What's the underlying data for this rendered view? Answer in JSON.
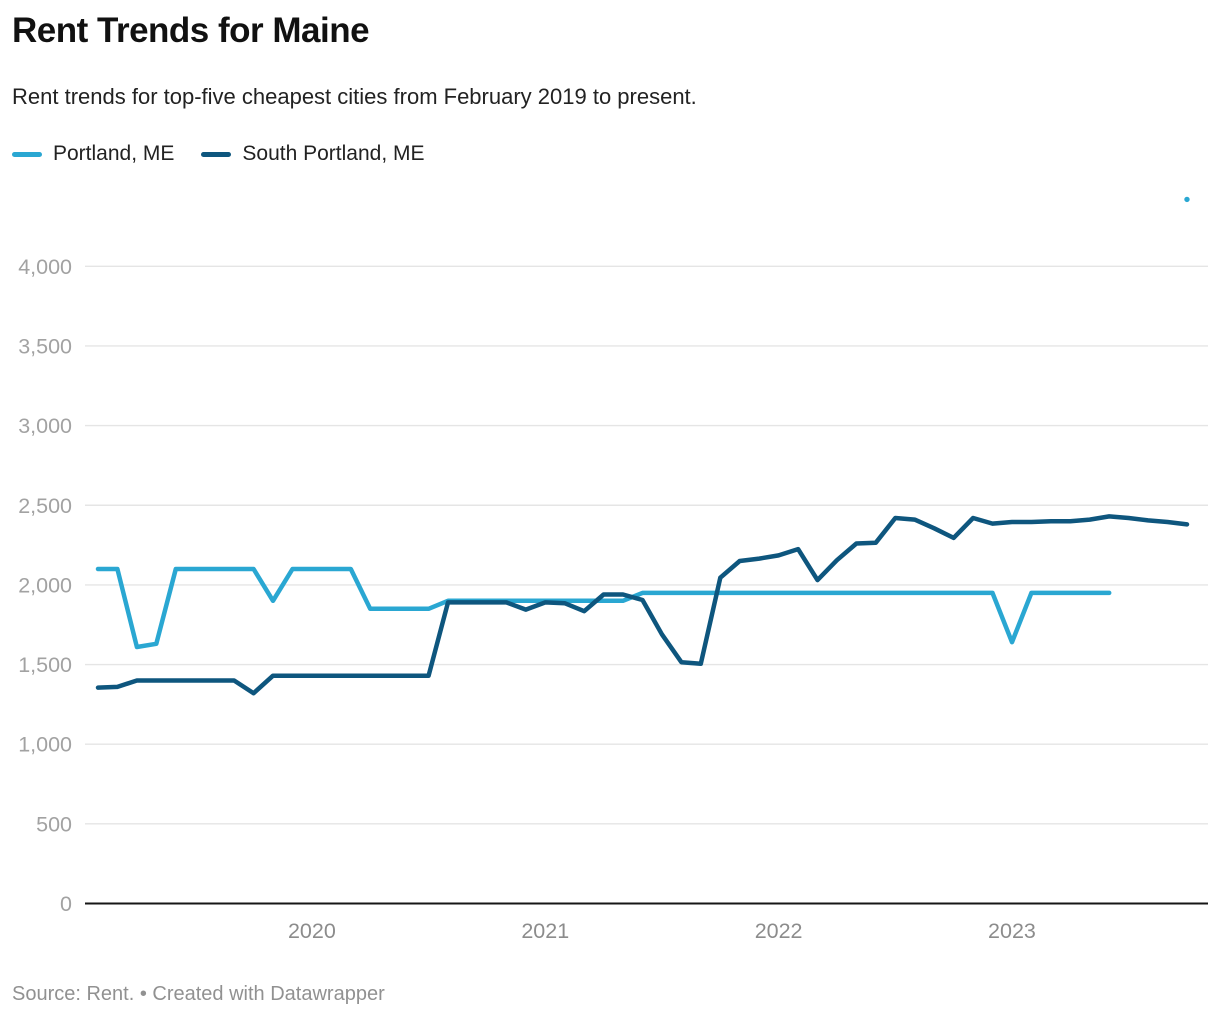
{
  "header": {
    "title": "Rent Trends for Maine",
    "subtitle": "Rent trends for top-five cheapest cities from February 2019 to present."
  },
  "legend": {
    "items": [
      {
        "label": "Portland, ME",
        "color": "#2AA7D2"
      },
      {
        "label": "South Portland, ME",
        "color": "#0E567E"
      }
    ]
  },
  "chart_data": {
    "type": "line",
    "title": "Rent Trends for Maine",
    "subtitle": "Rent trends for top-five cheapest cities from February 2019 to present.",
    "xlabel": "",
    "ylabel": "",
    "grid": "horizontal",
    "legend_position": "top-left",
    "ylim": [
      0,
      4500
    ],
    "x": [
      "2019-02",
      "2019-03",
      "2019-04",
      "2019-05",
      "2019-06",
      "2019-07",
      "2019-08",
      "2019-09",
      "2019-10",
      "2019-11",
      "2019-12",
      "2020-01",
      "2020-02",
      "2020-03",
      "2020-04",
      "2020-05",
      "2020-06",
      "2020-07",
      "2020-08",
      "2020-09",
      "2020-10",
      "2020-11",
      "2020-12",
      "2021-01",
      "2021-02",
      "2021-03",
      "2021-04",
      "2021-05",
      "2021-06",
      "2021-07",
      "2021-08",
      "2021-09",
      "2021-10",
      "2021-11",
      "2021-12",
      "2022-01",
      "2022-02",
      "2022-03",
      "2022-04",
      "2022-05",
      "2022-06",
      "2022-07",
      "2022-08",
      "2022-09",
      "2022-10",
      "2022-11",
      "2022-12",
      "2023-01",
      "2023-02",
      "2023-03",
      "2023-04",
      "2023-05",
      "2023-06",
      "2023-07",
      "2023-08",
      "2023-09",
      "2023-10"
    ],
    "series": [
      {
        "name": "Portland, ME",
        "color": "#2AA7D2",
        "values": [
          2100,
          2100,
          1610,
          1630,
          2100,
          2100,
          2100,
          2100,
          2100,
          1900,
          2100,
          2100,
          2100,
          2100,
          1850,
          1850,
          1850,
          1850,
          1900,
          1900,
          1900,
          1900,
          1900,
          1900,
          1900,
          1900,
          1900,
          1900,
          1950,
          1950,
          1950,
          1950,
          1950,
          1950,
          1950,
          1950,
          1950,
          1950,
          1950,
          1950,
          1950,
          1950,
          1950,
          1950,
          1950,
          1950,
          1950,
          1640,
          1950,
          1950,
          1950,
          1950,
          1950,
          null,
          null,
          null,
          4420
        ]
      },
      {
        "name": "South Portland, ME",
        "color": "#0E567E",
        "values": [
          1355,
          1360,
          1400,
          1400,
          1400,
          1400,
          1400,
          1400,
          1320,
          1430,
          1430,
          1430,
          1430,
          1430,
          1430,
          1430,
          1430,
          1430,
          1890,
          1890,
          1890,
          1890,
          1845,
          1890,
          1885,
          1835,
          1940,
          1940,
          1905,
          1690,
          1515,
          1505,
          2045,
          2150,
          2165,
          2185,
          2225,
          2030,
          2155,
          2260,
          2265,
          2420,
          2410,
          2355,
          2295,
          2420,
          2385,
          2395,
          2395,
          2400,
          2400,
          2410,
          2430,
          2420,
          2405,
          2395,
          2380
        ]
      }
    ],
    "y_axis": {
      "ticks": [
        {
          "value": 0,
          "label": "0"
        },
        {
          "value": 500,
          "label": "500"
        },
        {
          "value": 1000,
          "label": "1,000"
        },
        {
          "value": 1500,
          "label": "1,500"
        },
        {
          "value": 2000,
          "label": "2,000"
        },
        {
          "value": 2500,
          "label": "2,500"
        },
        {
          "value": 3000,
          "label": "3,000"
        },
        {
          "value": 3500,
          "label": "3,500"
        },
        {
          "value": 4000,
          "label": "4,000"
        }
      ]
    },
    "x_axis": {
      "ticks": [
        {
          "label": "2020",
          "month": "2020-01"
        },
        {
          "label": "2021",
          "month": "2021-01"
        },
        {
          "label": "2022",
          "month": "2022-01"
        },
        {
          "label": "2023",
          "month": "2023-01"
        }
      ]
    }
  },
  "footer": {
    "text": "Source: Rent. • Created with Datawrapper"
  }
}
